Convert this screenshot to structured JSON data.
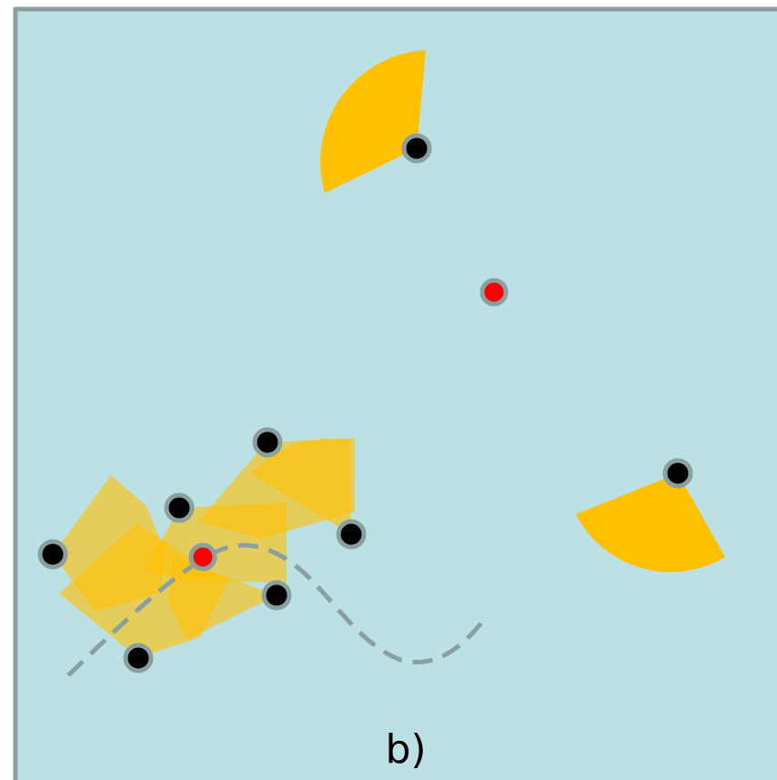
{
  "figure": {
    "label": "b)",
    "colors": {
      "background": "#bce1e4",
      "frame": "#8aa0a0",
      "sector": "#ffc000",
      "sector_translucent": "rgba(255, 192, 0, 0.6)",
      "node": "#000000",
      "node_ring": "#8aa0a0",
      "target": "#ff0000",
      "path": "#8aa0a0"
    }
  },
  "nodes": [
    {
      "id": "sensor-1",
      "kind": "sensor",
      "sector_style": "solid"
    },
    {
      "id": "sensor-2",
      "kind": "sensor",
      "sector_style": "solid"
    },
    {
      "id": "sensor-3",
      "kind": "sensor",
      "sector_style": "translucent"
    },
    {
      "id": "sensor-4",
      "kind": "sensor",
      "sector_style": "translucent"
    },
    {
      "id": "sensor-5",
      "kind": "sensor",
      "sector_style": "translucent"
    },
    {
      "id": "sensor-6",
      "kind": "sensor",
      "sector_style": "translucent"
    },
    {
      "id": "sensor-7",
      "kind": "sensor",
      "sector_style": "translucent"
    },
    {
      "id": "sensor-8",
      "kind": "sensor",
      "sector_style": "translucent"
    },
    {
      "id": "target-1",
      "kind": "target"
    },
    {
      "id": "target-2",
      "kind": "target"
    }
  ]
}
